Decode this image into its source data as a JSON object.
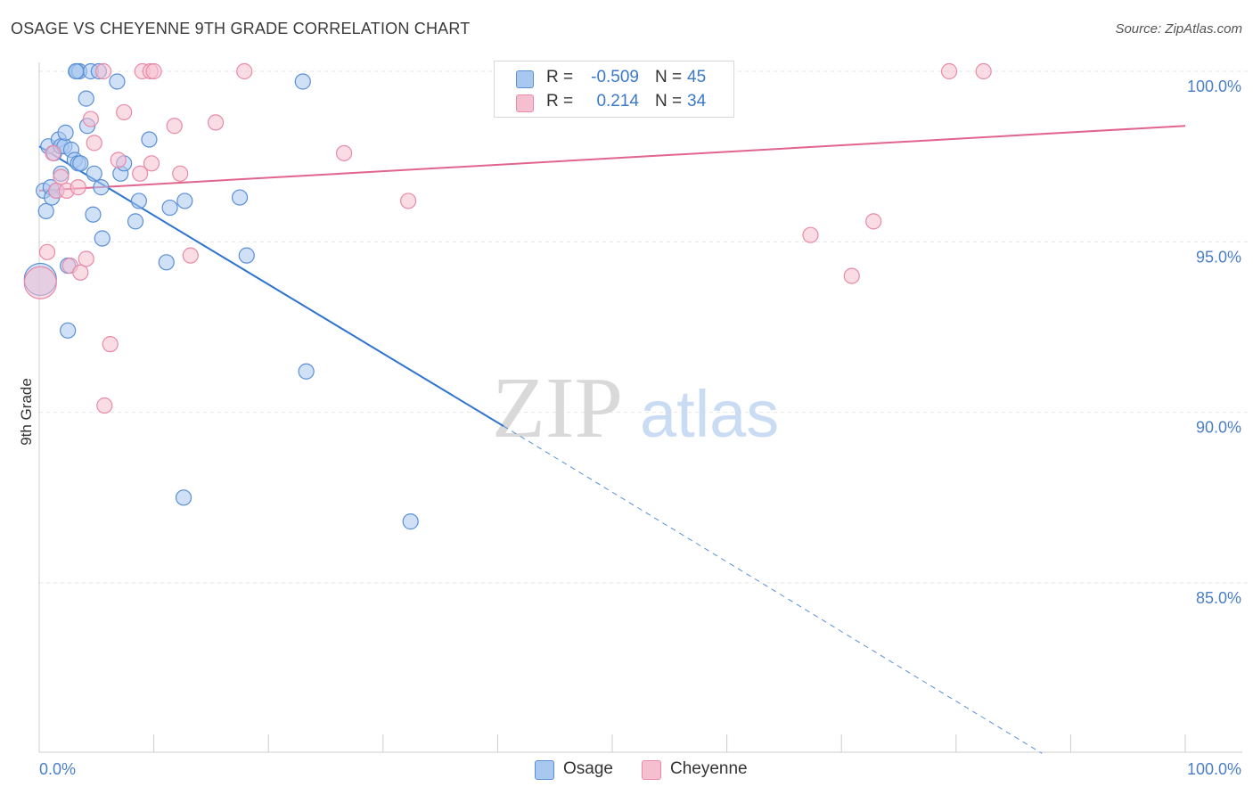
{
  "title": "OSAGE VS CHEYENNE 9TH GRADE CORRELATION CHART",
  "source": "Source: ZipAtlas.com",
  "watermark": {
    "zip": "ZIP",
    "atlas": "atlas"
  },
  "colors": {
    "osage_fill": "#a9c8f0",
    "osage_stroke": "#5a8fd6",
    "osage_line": "#2f74d0",
    "cheyenne_fill": "#f6bfd0",
    "cheyenne_stroke": "#e88aa8",
    "cheyenne_line": "#e0648c",
    "tick_text": "#4a7fc8",
    "grid": "#e6e6e6"
  },
  "legend": {
    "rows": [
      {
        "r_label": "R =",
        "r_value": "-0.509",
        "n_label": "N =",
        "n_value": "45"
      },
      {
        "r_label": "R =",
        "r_value": "0.214",
        "n_label": "N =",
        "n_value": "34"
      }
    ]
  },
  "bottom_legend": [
    "Osage",
    "Cheyenne"
  ],
  "chart_data": {
    "type": "scatter",
    "title": "OSAGE VS CHEYENNE 9TH GRADE CORRELATION CHART",
    "xlabel": "",
    "ylabel": "9th Grade",
    "xlim": [
      0,
      100
    ],
    "ylim": [
      80,
      100.5
    ],
    "x_tick_labels": [
      "0.0%",
      "100.0%"
    ],
    "y_ticks": [
      85,
      90,
      95,
      100
    ],
    "y_tick_labels": [
      "85.0%",
      "90.0%",
      "95.0%",
      "100.0%"
    ],
    "grid": true,
    "series": [
      {
        "name": "Osage",
        "R": -0.509,
        "N": 45,
        "points": [
          [
            0.4,
            96.5
          ],
          [
            0.6,
            95.9
          ],
          [
            0.8,
            97.8
          ],
          [
            1.0,
            96.6
          ],
          [
            1.1,
            96.3
          ],
          [
            1.3,
            97.6
          ],
          [
            1.5,
            96.5
          ],
          [
            1.7,
            98.0
          ],
          [
            1.9,
            97.8
          ],
          [
            1.9,
            97.0
          ],
          [
            2.2,
            97.8
          ],
          [
            2.3,
            98.2
          ],
          [
            2.5,
            94.3
          ],
          [
            2.5,
            92.4
          ],
          [
            2.8,
            97.7
          ],
          [
            3.1,
            97.4
          ],
          [
            3.4,
            97.3
          ],
          [
            3.6,
            97.3
          ],
          [
            3.3,
            100.0
          ],
          [
            3.5,
            100.0
          ],
          [
            4.1,
            99.2
          ],
          [
            4.2,
            98.4
          ],
          [
            4.5,
            100.0
          ],
          [
            4.7,
            95.8
          ],
          [
            4.8,
            97.0
          ],
          [
            5.2,
            100.0
          ],
          [
            5.4,
            96.6
          ],
          [
            5.5,
            95.1
          ],
          [
            6.8,
            99.7
          ],
          [
            7.1,
            97.0
          ],
          [
            7.4,
            97.3
          ],
          [
            8.4,
            95.6
          ],
          [
            8.7,
            96.2
          ],
          [
            9.6,
            98.0
          ],
          [
            11.1,
            94.4
          ],
          [
            11.4,
            96.0
          ],
          [
            12.7,
            96.2
          ],
          [
            12.6,
            87.5
          ],
          [
            17.5,
            96.3
          ],
          [
            18.1,
            94.6
          ],
          [
            23.0,
            99.7
          ],
          [
            23.3,
            91.2
          ],
          [
            32.4,
            86.8
          ],
          [
            0.1,
            93.9
          ],
          [
            3.2,
            100.0
          ]
        ],
        "trend": {
          "x0": 0,
          "y0": 97.8,
          "x1": 40.5,
          "y1": 89.6,
          "dashed_to_x": 87.5,
          "dashed_to_y": 80.0
        }
      },
      {
        "name": "Cheyenne",
        "R": 0.214,
        "N": 34,
        "points": [
          [
            0.1,
            93.8
          ],
          [
            0.7,
            94.7
          ],
          [
            1.2,
            97.6
          ],
          [
            1.5,
            96.5
          ],
          [
            1.9,
            96.9
          ],
          [
            2.4,
            96.5
          ],
          [
            2.7,
            94.3
          ],
          [
            3.4,
            96.6
          ],
          [
            3.6,
            94.1
          ],
          [
            4.1,
            94.5
          ],
          [
            4.5,
            98.6
          ],
          [
            4.8,
            97.9
          ],
          [
            5.6,
            100.0
          ],
          [
            5.7,
            90.2
          ],
          [
            6.2,
            92.0
          ],
          [
            6.9,
            97.4
          ],
          [
            7.4,
            98.8
          ],
          [
            8.8,
            97.0
          ],
          [
            9.0,
            100.0
          ],
          [
            9.7,
            100.0
          ],
          [
            9.8,
            97.3
          ],
          [
            10.0,
            100.0
          ],
          [
            11.8,
            98.4
          ],
          [
            12.3,
            97.0
          ],
          [
            13.2,
            94.6
          ],
          [
            15.4,
            98.5
          ],
          [
            17.9,
            100.0
          ],
          [
            26.6,
            97.6
          ],
          [
            32.2,
            96.2
          ],
          [
            67.3,
            95.2
          ],
          [
            70.9,
            94.0
          ],
          [
            72.8,
            95.6
          ],
          [
            79.4,
            100.0
          ],
          [
            82.4,
            100.0
          ]
        ],
        "trend": {
          "x0": 0,
          "y0": 96.5,
          "x1": 100,
          "y1": 98.4
        }
      }
    ]
  }
}
